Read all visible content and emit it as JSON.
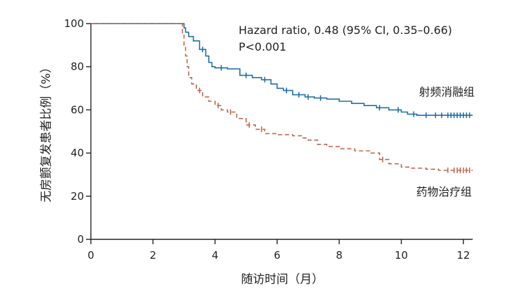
{
  "chart_data": {
    "type": "line",
    "title": "",
    "xlabel": "随访时间（月）",
    "ylabel": "无房颤复发患者比例（%）",
    "xlim": [
      0,
      12.3
    ],
    "ylim": [
      0,
      100
    ],
    "xticks": [
      0,
      2,
      4,
      6,
      8,
      10,
      12
    ],
    "yticks": [
      0,
      20,
      40,
      60,
      80,
      100
    ],
    "grid": false,
    "annotations": [
      "Hazard ratio, 0.48 (95% CI, 0.35–0.66)",
      "P<0.001"
    ],
    "series": [
      {
        "name": "射频消融组",
        "color": "#1f6fa6",
        "style": "solid",
        "points": [
          [
            0,
            100
          ],
          [
            2.95,
            100
          ],
          [
            3.0,
            98
          ],
          [
            3.05,
            96
          ],
          [
            3.15,
            94
          ],
          [
            3.3,
            92
          ],
          [
            3.5,
            88
          ],
          [
            3.7,
            85
          ],
          [
            3.8,
            82
          ],
          [
            3.9,
            80
          ],
          [
            4.0,
            79.5
          ],
          [
            4.4,
            79
          ],
          [
            4.8,
            76
          ],
          [
            5.2,
            75
          ],
          [
            5.5,
            74
          ],
          [
            5.8,
            72
          ],
          [
            6.0,
            70
          ],
          [
            6.2,
            69
          ],
          [
            6.5,
            67
          ],
          [
            6.9,
            66
          ],
          [
            7.2,
            65.5
          ],
          [
            7.6,
            65
          ],
          [
            8.0,
            64
          ],
          [
            8.4,
            63
          ],
          [
            8.8,
            62
          ],
          [
            9.2,
            61
          ],
          [
            9.6,
            60
          ],
          [
            10.0,
            59
          ],
          [
            10.2,
            58
          ],
          [
            10.5,
            57.5
          ],
          [
            12.3,
            57.5
          ]
        ],
        "censored_x": [
          3.6,
          4.2,
          5.0,
          5.6,
          6.3,
          6.7,
          7.0,
          7.4,
          9.3,
          9.9,
          10.4,
          10.8,
          11.1,
          11.3,
          11.5,
          11.6,
          11.7,
          11.8,
          11.9,
          12.0,
          12.1,
          12.2
        ]
      },
      {
        "name": "药物治疗组",
        "color": "#c0664f",
        "style": "dashed",
        "points": [
          [
            0,
            100
          ],
          [
            2.9,
            100
          ],
          [
            2.95,
            95
          ],
          [
            3.0,
            90
          ],
          [
            3.05,
            85
          ],
          [
            3.1,
            80
          ],
          [
            3.15,
            75
          ],
          [
            3.25,
            72
          ],
          [
            3.4,
            69
          ],
          [
            3.6,
            66
          ],
          [
            3.8,
            64
          ],
          [
            4.0,
            62
          ],
          [
            4.2,
            60
          ],
          [
            4.4,
            59
          ],
          [
            4.7,
            56
          ],
          [
            5.0,
            53
          ],
          [
            5.3,
            51
          ],
          [
            5.6,
            49
          ],
          [
            6.0,
            48.5
          ],
          [
            6.5,
            48
          ],
          [
            6.8,
            47
          ],
          [
            7.0,
            46
          ],
          [
            7.3,
            44
          ],
          [
            7.6,
            43
          ],
          [
            8.0,
            42
          ],
          [
            8.5,
            41
          ],
          [
            9.0,
            40
          ],
          [
            9.3,
            37
          ],
          [
            9.6,
            35
          ],
          [
            10.0,
            33.5
          ],
          [
            10.3,
            33
          ],
          [
            10.8,
            32.5
          ],
          [
            11.2,
            32
          ],
          [
            12.3,
            32
          ]
        ],
        "censored_x": [
          3.5,
          4.1,
          4.5,
          5.1,
          5.5,
          9.4,
          11.5,
          11.7,
          11.8,
          11.9,
          12.0,
          12.1,
          12.2
        ]
      }
    ]
  }
}
